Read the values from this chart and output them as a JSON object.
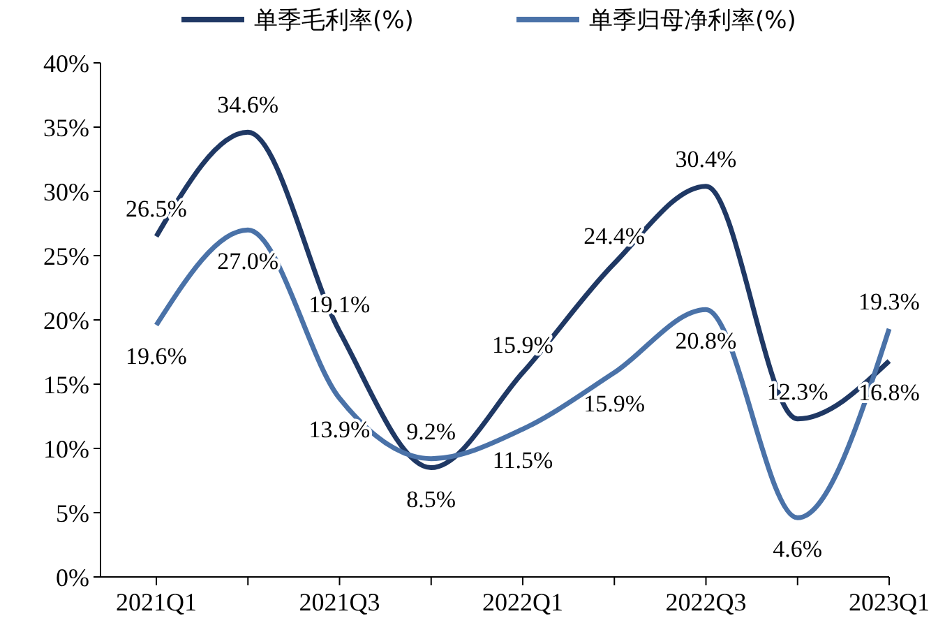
{
  "chart_data": {
    "type": "line",
    "categories": [
      "2021Q1",
      null,
      "2021Q3",
      null,
      "2022Q1",
      null,
      "2022Q3",
      null,
      "2023Q1"
    ],
    "series": [
      {
        "name": "单季毛利率(%)",
        "color": "#1f3864",
        "values": [
          26.5,
          34.6,
          19.1,
          8.5,
          15.9,
          24.4,
          30.4,
          12.3,
          16.8
        ],
        "value_labels": [
          "26.5%",
          "34.6%",
          "19.1%",
          "8.5%",
          "15.9%",
          "24.4%",
          "30.4%",
          "12.3%",
          "16.8%"
        ]
      },
      {
        "name": "单季归母净利率(%)",
        "color": "#4a72a8",
        "values": [
          19.6,
          27.0,
          13.9,
          9.2,
          11.5,
          15.9,
          20.8,
          4.6,
          19.3
        ],
        "value_labels": [
          "19.6%",
          "27.0%",
          "13.9%",
          "9.2%",
          "11.5%",
          "15.9%",
          "20.8%",
          "4.6%",
          "19.3%"
        ]
      }
    ],
    "ylim": [
      0,
      40
    ],
    "yticks": [
      {
        "value": 0,
        "label": "0%"
      },
      {
        "value": 5,
        "label": "5%"
      },
      {
        "value": 10,
        "label": "10%"
      },
      {
        "value": 15,
        "label": "15%"
      },
      {
        "value": 20,
        "label": "20%"
      },
      {
        "value": 25,
        "label": "25%"
      },
      {
        "value": 30,
        "label": "30%"
      },
      {
        "value": 35,
        "label": "35%"
      },
      {
        "value": 40,
        "label": "40%"
      }
    ],
    "grid": false,
    "legend": "top",
    "marker": "none",
    "line_style": "solid"
  }
}
